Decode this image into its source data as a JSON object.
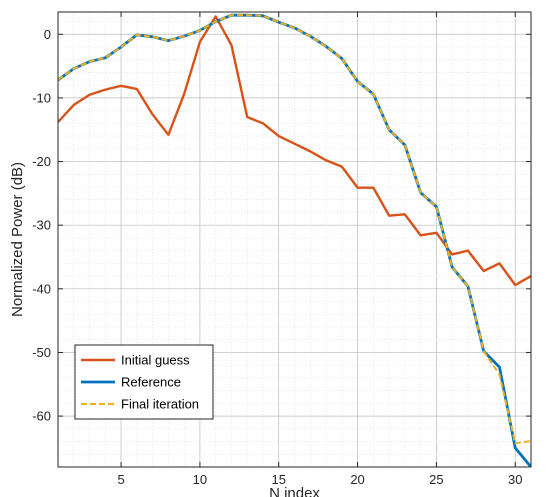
{
  "chart_data": {
    "type": "line",
    "xlabel": "N index",
    "ylabel": "Normalized Power (dB)",
    "xlim": [
      1,
      31
    ],
    "ylim": [
      -68,
      3.5
    ],
    "xticks": [
      5,
      10,
      15,
      20,
      25,
      30
    ],
    "yticks": [
      0,
      -10,
      -20,
      -30,
      -40,
      -50,
      -60
    ],
    "grid": true,
    "minor_grid": true,
    "legend_position": "bottom-left",
    "x": [
      1,
      2,
      3,
      4,
      5,
      6,
      7,
      8,
      9,
      10,
      11,
      12,
      13,
      14,
      15,
      16,
      17,
      18,
      19,
      20,
      21,
      22,
      23,
      24,
      25,
      26,
      27,
      28,
      29,
      30,
      31
    ],
    "series": [
      {
        "name": "Initial guess",
        "color": "#D95319",
        "style": "solid",
        "values": [
          -13.8,
          -11.1,
          -9.5,
          -8.7,
          -8.1,
          -8.6,
          -12.6,
          -15.8,
          -9.4,
          -1.2,
          2.8,
          -1.7,
          -13.0,
          -14.0,
          -16.0,
          -17.2,
          -18.4,
          -19.8,
          -20.8,
          -24.1,
          -24.1,
          -28.5,
          -28.3,
          -31.6,
          -31.2,
          -34.6,
          -34.0,
          -37.2,
          -36.0,
          -39.4,
          -38.0
        ]
      },
      {
        "name": "Reference",
        "color": "#0072BD",
        "style": "solid",
        "values": [
          -7.2,
          -5.4,
          -4.3,
          -3.7,
          -2.0,
          -0.1,
          -0.4,
          -1.0,
          -0.3,
          0.6,
          2.0,
          3.0,
          3.0,
          2.9,
          1.9,
          1.0,
          -0.3,
          -1.9,
          -3.8,
          -7.4,
          -9.4,
          -15.0,
          -17.4,
          -24.9,
          -27.1,
          -36.6,
          -39.6,
          -49.8,
          -52.3,
          -65.0,
          -68.0
        ]
      },
      {
        "name": "Final iteration",
        "color": "#EDB120",
        "style": "dashed",
        "values": [
          -7.2,
          -5.4,
          -4.3,
          -3.7,
          -2.0,
          -0.1,
          -0.4,
          -1.0,
          -0.3,
          0.6,
          2.0,
          3.0,
          3.0,
          2.9,
          1.9,
          1.0,
          -0.3,
          -1.9,
          -3.8,
          -7.4,
          -9.4,
          -15.0,
          -17.4,
          -24.9,
          -27.1,
          -36.6,
          -39.6,
          -49.8,
          -53.5,
          -64.3,
          -63.9
        ]
      }
    ]
  }
}
